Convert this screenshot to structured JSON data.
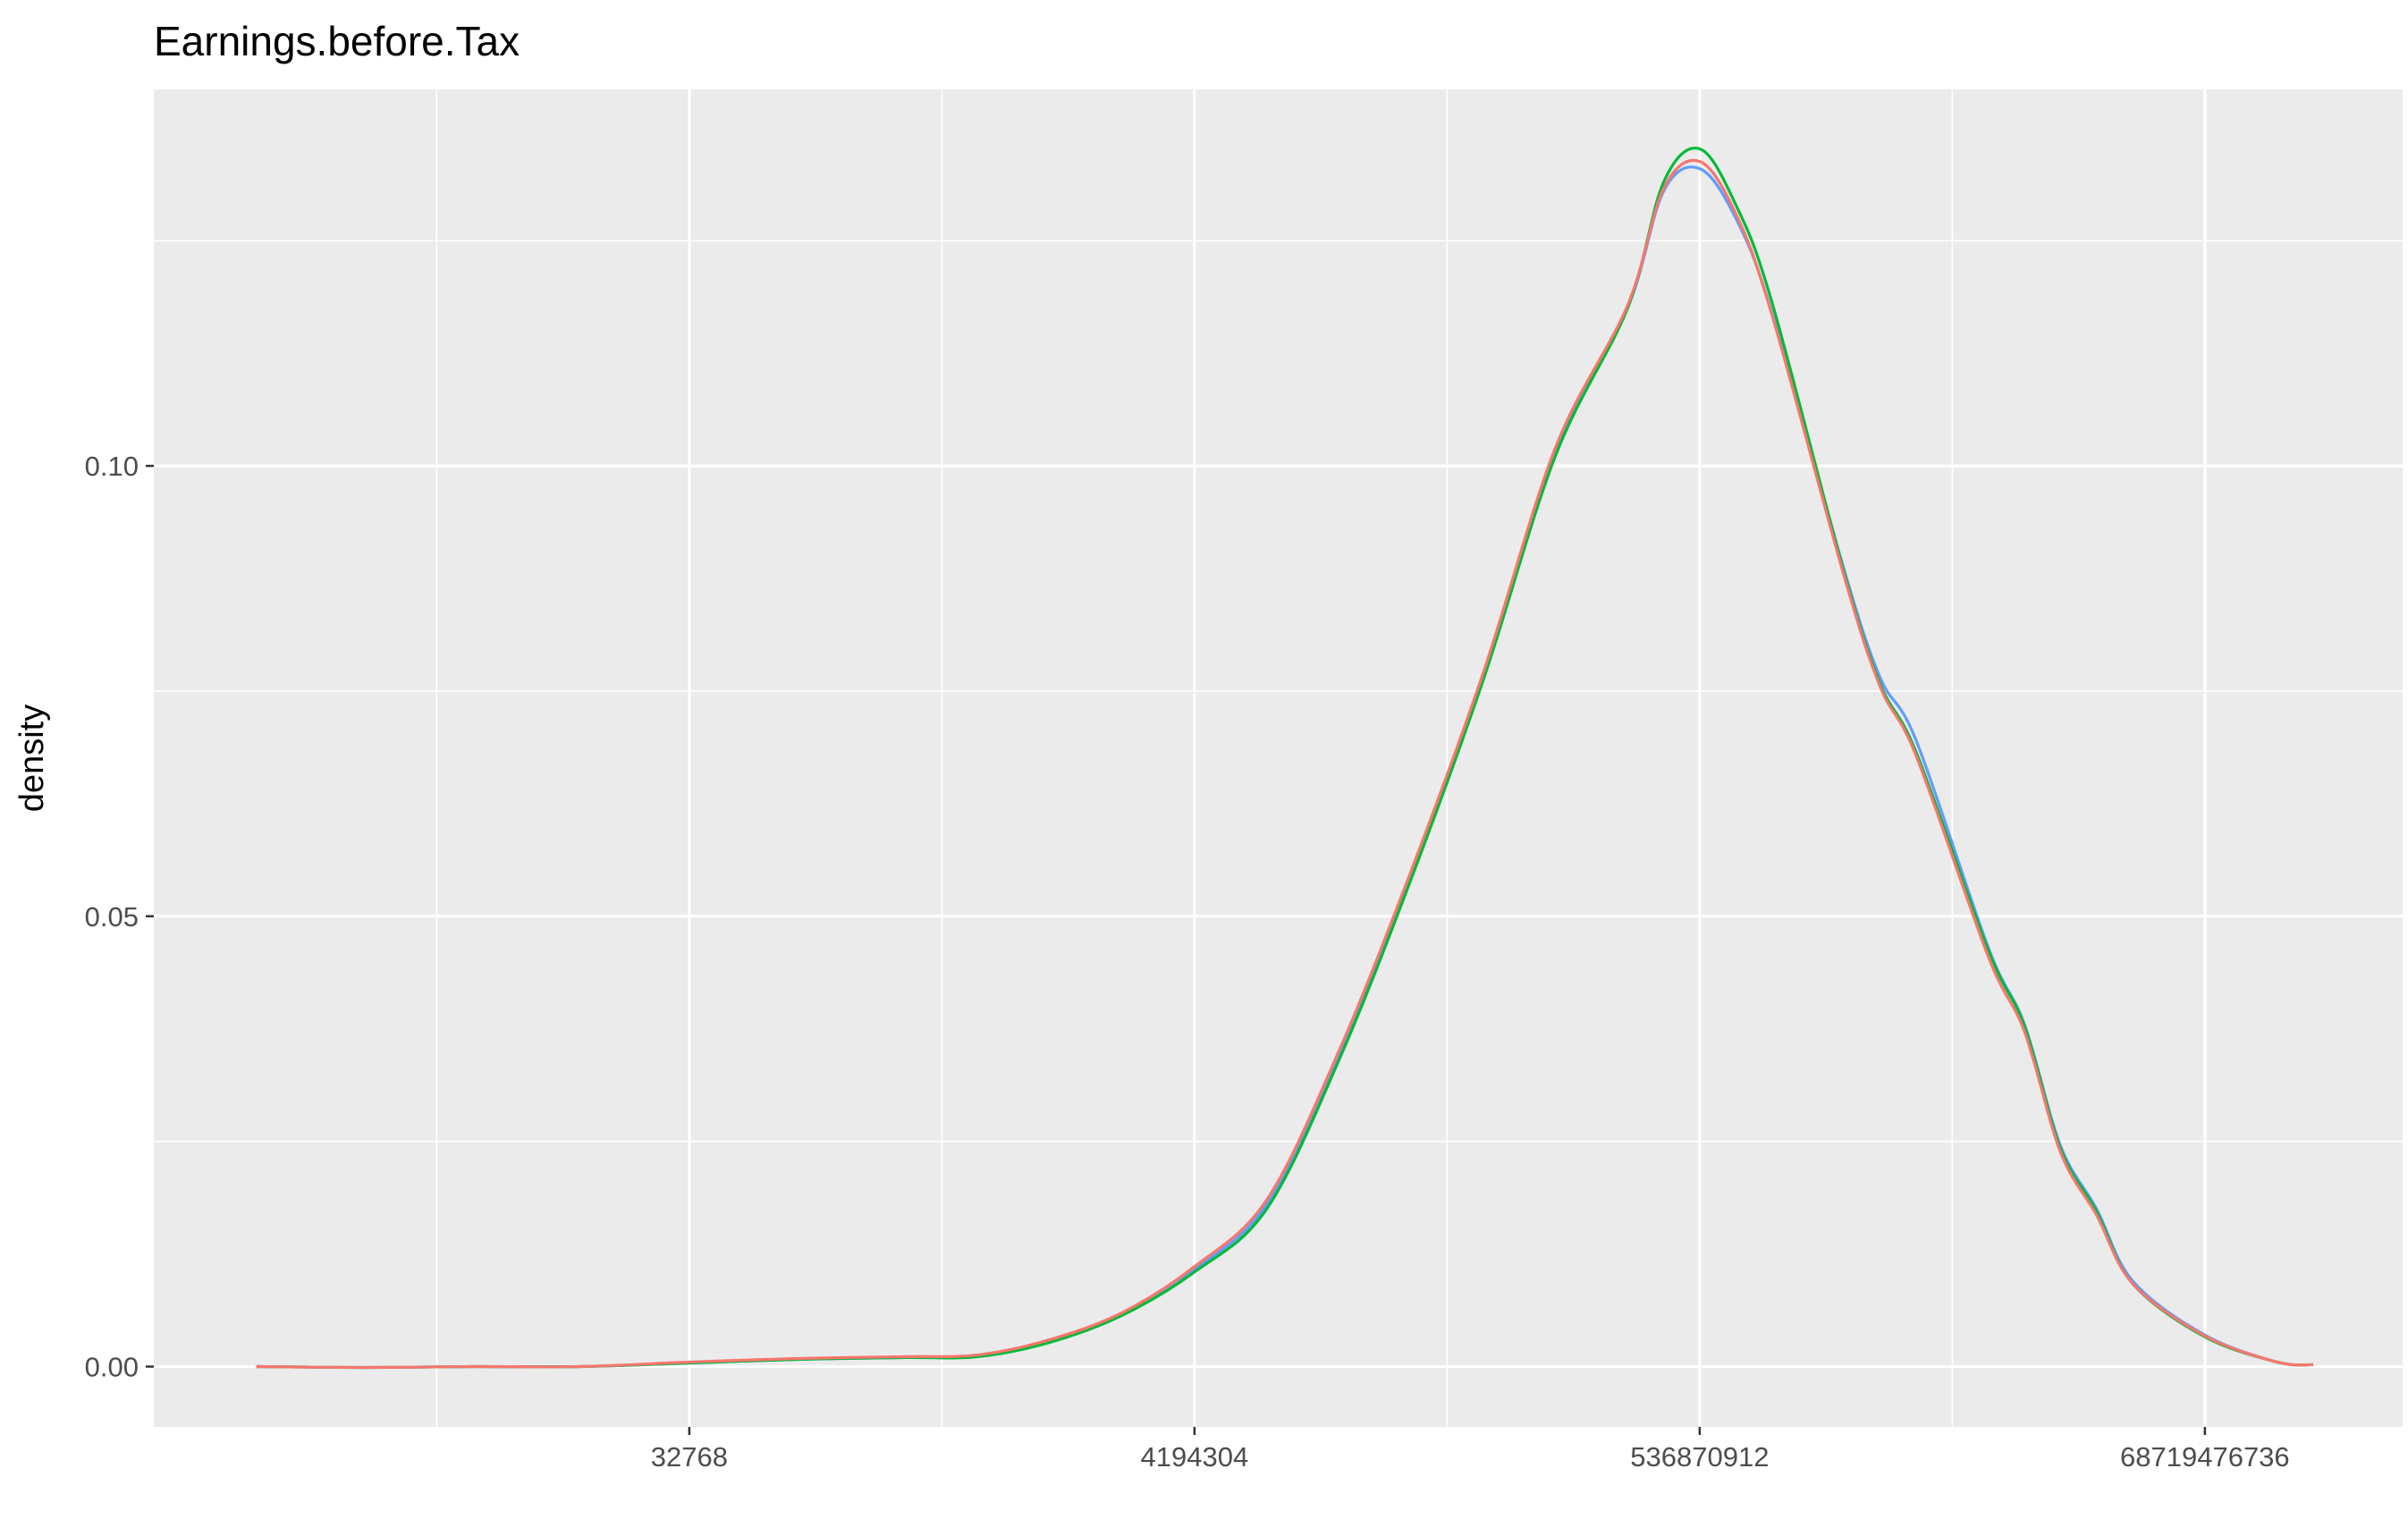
{
  "chart_data": {
    "type": "line",
    "title": "Earnings.before.Tax",
    "xlabel": "",
    "ylabel": "density",
    "x_scale": "log2",
    "x_ticks": [
      32768,
      4194304,
      536870912,
      68719476736
    ],
    "x_tick_labels": [
      "32768",
      "4194304",
      "536870912",
      "68719476736"
    ],
    "y_ticks": [
      0.0,
      0.05,
      0.1
    ],
    "y_tick_labels": [
      "0.00",
      "0.05",
      "0.10"
    ],
    "xlim_log2": [
      7.58,
      38.74
    ],
    "ylim": [
      -0.0067,
      0.1418
    ],
    "grid": true,
    "legend": "none",
    "colors": {
      "panel": "#ebebeb",
      "grid": "#ffffff",
      "series_red": "#F8766D",
      "series_green": "#00BA38",
      "series_blue": "#619CFF"
    },
    "series": [
      {
        "color": "#619CFF",
        "points_log2x": [
          [
            9.0,
            0.0
          ],
          [
            10.5,
            -0.0001
          ],
          [
            12.0,
            0.0
          ],
          [
            13.5,
            0.0
          ],
          [
            15.0,
            0.0004
          ],
          [
            16.5,
            0.0008
          ],
          [
            18.0,
            0.001
          ],
          [
            19.0,
            0.0012
          ],
          [
            20.0,
            0.0028
          ],
          [
            21.0,
            0.0058
          ],
          [
            22.0,
            0.0108
          ],
          [
            23.0,
            0.018
          ],
          [
            24.0,
            0.0345
          ],
          [
            25.0,
            0.0545
          ],
          [
            26.0,
            0.0765
          ],
          [
            27.0,
            0.1015
          ],
          [
            28.0,
            0.1175
          ],
          [
            28.5,
            0.1305
          ],
          [
            29.0,
            0.133
          ],
          [
            29.5,
            0.1275
          ],
          [
            30.0,
            0.117
          ],
          [
            31.0,
            0.0885
          ],
          [
            31.5,
            0.0765
          ],
          [
            32.0,
            0.0695
          ],
          [
            33.0,
            0.0465
          ],
          [
            33.5,
            0.038
          ],
          [
            34.0,
            0.0245
          ],
          [
            34.5,
            0.0175
          ],
          [
            35.0,
            0.0095
          ],
          [
            36.0,
            0.0035
          ],
          [
            37.0,
            0.0005
          ],
          [
            37.5,
            0.0002
          ]
        ]
      },
      {
        "color": "#00BA38",
        "points_log2x": [
          [
            9.0,
            0.0
          ],
          [
            10.5,
            -0.0001
          ],
          [
            12.0,
            0.0
          ],
          [
            13.5,
            0.0
          ],
          [
            15.0,
            0.0004
          ],
          [
            16.5,
            0.0008
          ],
          [
            18.0,
            0.001
          ],
          [
            19.0,
            0.0011
          ],
          [
            20.0,
            0.0027
          ],
          [
            21.0,
            0.0057
          ],
          [
            22.0,
            0.0105
          ],
          [
            23.0,
            0.0175
          ],
          [
            24.0,
            0.034
          ],
          [
            25.0,
            0.0541
          ],
          [
            26.0,
            0.0762
          ],
          [
            27.0,
            0.1011
          ],
          [
            28.0,
            0.1175
          ],
          [
            28.5,
            0.1315
          ],
          [
            29.0,
            0.1352
          ],
          [
            29.5,
            0.129
          ],
          [
            30.0,
            0.1182
          ],
          [
            31.0,
            0.0882
          ],
          [
            31.5,
            0.0758
          ],
          [
            32.0,
            0.0682
          ],
          [
            33.0,
            0.0462
          ],
          [
            33.5,
            0.0378
          ],
          [
            34.0,
            0.0242
          ],
          [
            34.5,
            0.0172
          ],
          [
            35.0,
            0.0092
          ],
          [
            36.0,
            0.0033
          ],
          [
            37.0,
            0.0005
          ],
          [
            37.5,
            0.0002
          ]
        ]
      },
      {
        "color": "#F8766D",
        "points_log2x": [
          [
            9.0,
            0.0
          ],
          [
            10.5,
            -0.0001
          ],
          [
            12.0,
            0.0
          ],
          [
            13.5,
            0.0
          ],
          [
            15.0,
            0.0005
          ],
          [
            16.5,
            0.0009
          ],
          [
            18.0,
            0.0011
          ],
          [
            19.0,
            0.0013
          ],
          [
            20.0,
            0.003
          ],
          [
            21.0,
            0.006
          ],
          [
            22.0,
            0.0111
          ],
          [
            23.0,
            0.0185
          ],
          [
            24.0,
            0.035
          ],
          [
            25.0,
            0.055
          ],
          [
            26.0,
            0.077
          ],
          [
            27.0,
            0.102
          ],
          [
            28.0,
            0.1178
          ],
          [
            28.5,
            0.1308
          ],
          [
            29.0,
            0.1338
          ],
          [
            29.5,
            0.128
          ],
          [
            30.0,
            0.1168
          ],
          [
            31.0,
            0.0878
          ],
          [
            31.5,
            0.0755
          ],
          [
            32.0,
            0.0678
          ],
          [
            33.0,
            0.0455
          ],
          [
            33.5,
            0.0372
          ],
          [
            34.0,
            0.0238
          ],
          [
            34.5,
            0.0168
          ],
          [
            35.0,
            0.0092
          ],
          [
            36.0,
            0.0034
          ],
          [
            37.0,
            0.0005
          ],
          [
            37.5,
            0.0002
          ]
        ]
      }
    ]
  }
}
